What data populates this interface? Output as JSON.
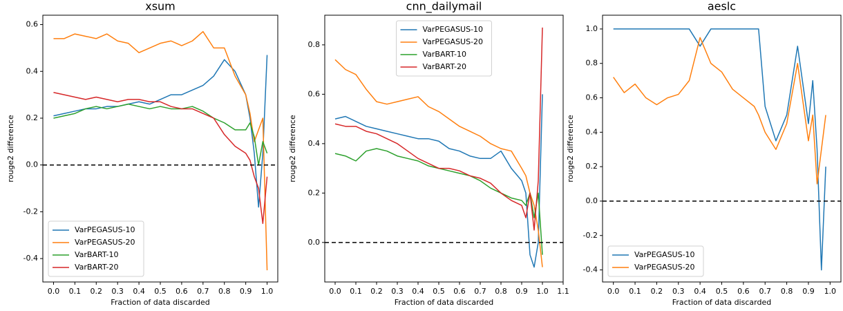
{
  "chart_data": [
    {
      "type": "line",
      "title": "xsum",
      "xlabel": "Fraction of data discarded",
      "ylabel": "rouge2 difference",
      "x": [
        0,
        0.05,
        0.1,
        0.15,
        0.2,
        0.25,
        0.3,
        0.35,
        0.4,
        0.45,
        0.5,
        0.55,
        0.6,
        0.65,
        0.7,
        0.75,
        0.8,
        0.85,
        0.9,
        0.92,
        0.94,
        0.96,
        0.98,
        1.0
      ],
      "series": [
        {
          "name": "VarPEGASUS-10",
          "color": "#1f77b4",
          "values": [
            0.21,
            0.22,
            0.23,
            0.24,
            0.24,
            0.25,
            0.25,
            0.26,
            0.27,
            0.26,
            0.28,
            0.3,
            0.3,
            0.32,
            0.34,
            0.38,
            0.45,
            0.4,
            0.3,
            0.2,
            0.05,
            -0.18,
            0.05,
            0.47
          ]
        },
        {
          "name": "VarPEGASUS-20",
          "color": "#ff7f0e",
          "values": [
            0.54,
            0.54,
            0.56,
            0.55,
            0.54,
            0.56,
            0.53,
            0.52,
            0.48,
            0.5,
            0.52,
            0.53,
            0.51,
            0.53,
            0.57,
            0.5,
            0.5,
            0.38,
            0.3,
            0.22,
            0.1,
            0.15,
            0.2,
            -0.45
          ]
        },
        {
          "name": "VarBART-10",
          "color": "#2ca02c",
          "values": [
            0.2,
            0.21,
            0.22,
            0.24,
            0.25,
            0.24,
            0.25,
            0.26,
            0.25,
            0.24,
            0.25,
            0.24,
            0.24,
            0.25,
            0.23,
            0.2,
            0.18,
            0.15,
            0.15,
            0.18,
            0.12,
            0.0,
            0.1,
            0.05
          ]
        },
        {
          "name": "VarBART-20",
          "color": "#d62728",
          "values": [
            0.31,
            0.3,
            0.29,
            0.28,
            0.29,
            0.28,
            0.27,
            0.28,
            0.28,
            0.27,
            0.27,
            0.25,
            0.24,
            0.24,
            0.22,
            0.2,
            0.13,
            0.08,
            0.05,
            0.02,
            -0.05,
            -0.1,
            -0.25,
            -0.05
          ]
        }
      ],
      "xlim": [
        -0.05,
        1.05
      ],
      "ylim": [
        -0.5,
        0.64
      ],
      "xticks": [
        {
          "value": 0,
          "label": "0.0"
        },
        0.1,
        0.2,
        0.3,
        0.4,
        0.5,
        0.6,
        0.7,
        0.8,
        0.9,
        {
          "value": 1,
          "label": "1.0"
        }
      ],
      "yticks": [
        -0.4,
        -0.2,
        {
          "value": 0,
          "label": "0.0"
        },
        0.2,
        0.4,
        0.6
      ],
      "hline": 0,
      "legend": "lower left"
    },
    {
      "type": "line",
      "title": "cnn_dailymail",
      "xlabel": "Fraction of data discarded",
      "ylabel": "rouge2 difference",
      "x": [
        0,
        0.05,
        0.1,
        0.15,
        0.2,
        0.25,
        0.3,
        0.35,
        0.4,
        0.45,
        0.5,
        0.55,
        0.6,
        0.65,
        0.7,
        0.75,
        0.8,
        0.85,
        0.9,
        0.92,
        0.94,
        0.96,
        0.98,
        1.0
      ],
      "series": [
        {
          "name": "VarPEGASUS-10",
          "color": "#1f77b4",
          "values": [
            0.5,
            0.51,
            0.49,
            0.47,
            0.46,
            0.45,
            0.44,
            0.43,
            0.42,
            0.42,
            0.41,
            0.38,
            0.37,
            0.35,
            0.34,
            0.34,
            0.37,
            0.3,
            0.25,
            0.2,
            -0.05,
            -0.1,
            0.0,
            0.6
          ]
        },
        {
          "name": "VarPEGASUS-20",
          "color": "#ff7f0e",
          "values": [
            0.74,
            0.7,
            0.68,
            0.62,
            0.57,
            0.56,
            0.57,
            0.58,
            0.59,
            0.55,
            0.53,
            0.5,
            0.47,
            0.45,
            0.43,
            0.4,
            0.38,
            0.37,
            0.3,
            0.27,
            0.2,
            0.15,
            0.05,
            -0.1
          ]
        },
        {
          "name": "VarBART-10",
          "color": "#2ca02c",
          "values": [
            0.36,
            0.35,
            0.33,
            0.37,
            0.38,
            0.37,
            0.35,
            0.34,
            0.33,
            0.31,
            0.3,
            0.29,
            0.28,
            0.27,
            0.25,
            0.22,
            0.2,
            0.18,
            0.17,
            0.15,
            0.2,
            0.1,
            0.2,
            -0.05
          ]
        },
        {
          "name": "VarBART-20",
          "color": "#d62728",
          "values": [
            0.48,
            0.47,
            0.47,
            0.45,
            0.44,
            0.42,
            0.4,
            0.37,
            0.34,
            0.32,
            0.3,
            0.3,
            0.29,
            0.27,
            0.26,
            0.24,
            0.2,
            0.17,
            0.15,
            0.1,
            0.2,
            0.05,
            0.25,
            0.87
          ]
        }
      ],
      "xlim": [
        -0.05,
        1.1
      ],
      "ylim": [
        -0.16,
        0.92
      ],
      "xticks": [
        {
          "value": 0,
          "label": "0.0"
        },
        0.1,
        0.2,
        0.3,
        0.4,
        0.5,
        0.6,
        0.7,
        0.8,
        0.9,
        {
          "value": 1,
          "label": "1.0"
        },
        1.1
      ],
      "yticks": [
        {
          "value": 0,
          "label": "0.0"
        },
        0.2,
        0.4,
        0.6,
        0.8
      ],
      "hline": 0,
      "legend": "upper center"
    },
    {
      "type": "line",
      "title": "aeslc",
      "xlabel": "Fraction of data discarded",
      "ylabel": "rouge2 difference",
      "x": [
        0,
        0.05,
        0.1,
        0.15,
        0.2,
        0.25,
        0.3,
        0.35,
        0.4,
        0.45,
        0.5,
        0.55,
        0.6,
        0.65,
        0.67,
        0.7,
        0.75,
        0.8,
        0.85,
        0.9,
        0.92,
        0.94,
        0.96,
        0.98
      ],
      "series": [
        {
          "name": "VarPEGASUS-10",
          "color": "#1f77b4",
          "values": [
            1,
            1,
            1,
            1,
            1,
            1,
            1,
            1,
            0.9,
            1,
            1,
            1,
            1,
            1,
            1,
            0.55,
            0.35,
            0.5,
            0.9,
            0.45,
            0.7,
            0.3,
            -0.4,
            0.2
          ]
        },
        {
          "name": "VarPEGASUS-20",
          "color": "#ff7f0e",
          "values": [
            0.72,
            0.63,
            0.68,
            0.6,
            0.56,
            0.6,
            0.62,
            0.7,
            0.95,
            0.8,
            0.75,
            0.65,
            0.6,
            0.55,
            0.5,
            0.4,
            0.3,
            0.45,
            0.8,
            0.35,
            0.5,
            0.1,
            0.3,
            0.5
          ]
        }
      ],
      "xlim": [
        -0.05,
        1.05
      ],
      "ylim": [
        -0.47,
        1.08
      ],
      "xticks": [
        {
          "value": 0,
          "label": "0.0"
        },
        0.1,
        0.2,
        0.3,
        0.4,
        0.5,
        0.6,
        0.7,
        0.8,
        0.9,
        {
          "value": 1,
          "label": "1.0"
        }
      ],
      "yticks": [
        -0.4,
        -0.2,
        {
          "value": 0,
          "label": "0.0"
        },
        0.2,
        0.4,
        0.6,
        0.8,
        {
          "value": 1,
          "label": "1.0"
        }
      ],
      "hline": 0,
      "legend": "lower left"
    }
  ]
}
